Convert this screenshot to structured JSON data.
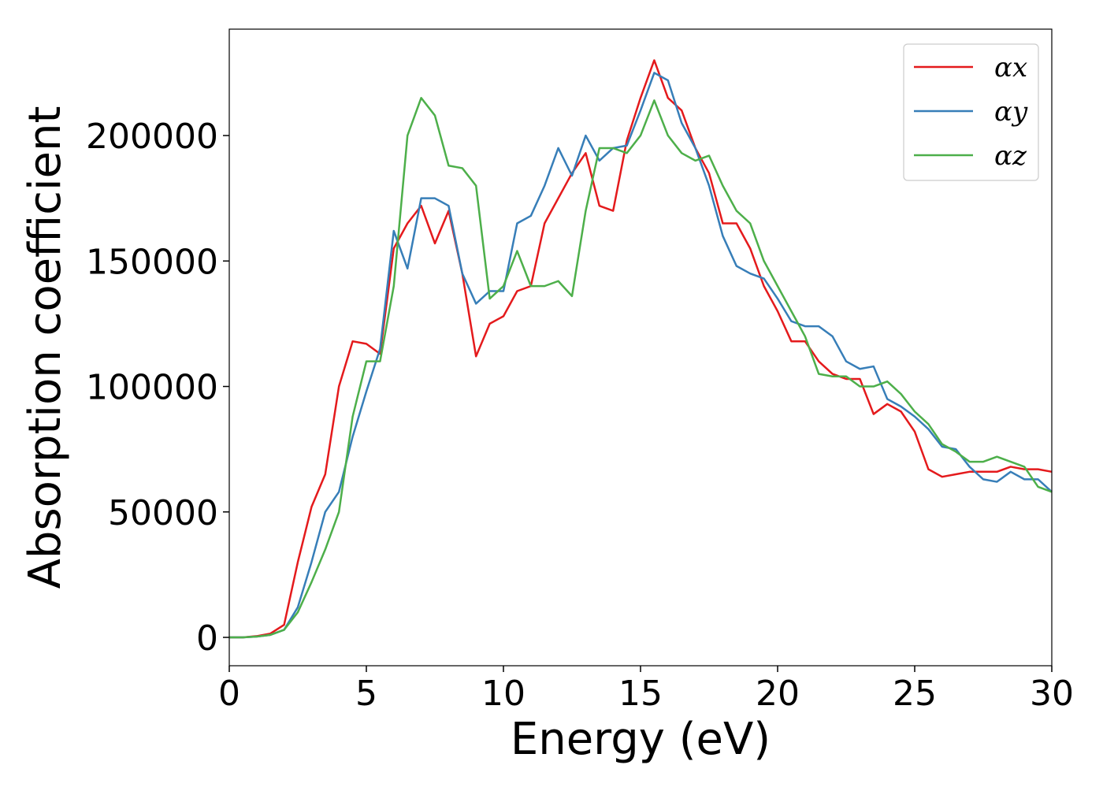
{
  "chart_data": {
    "type": "line",
    "xlabel": "Energy (eV)",
    "ylabel": "Absorption coefficient",
    "x": [
      0,
      0.5,
      1,
      1.5,
      2,
      2.5,
      3,
      3.5,
      4,
      4.5,
      5,
      5.5,
      6,
      6.5,
      7,
      7.5,
      8,
      8.5,
      9,
      9.5,
      10,
      10.5,
      11,
      11.5,
      12,
      12.5,
      13,
      13.5,
      14,
      14.5,
      15,
      15.5,
      16,
      16.5,
      17,
      17.5,
      18,
      18.5,
      19,
      19.5,
      20,
      20.5,
      21,
      21.5,
      22,
      22.5,
      23,
      23.5,
      24,
      24.5,
      25,
      25.5,
      26,
      26.5,
      27,
      27.5,
      28,
      28.5,
      29,
      29.5,
      30
    ],
    "series": [
      {
        "name": "αx",
        "color": "#e41a1c",
        "values": [
          0,
          0,
          500,
          1500,
          5000,
          30000,
          52000,
          65000,
          100000,
          118000,
          117000,
          113000,
          155000,
          165000,
          172000,
          157000,
          170000,
          145000,
          112000,
          125000,
          128000,
          138000,
          140000,
          165000,
          175000,
          185000,
          193000,
          172000,
          170000,
          198000,
          215000,
          230000,
          215000,
          210000,
          195000,
          185000,
          165000,
          165000,
          155000,
          140000,
          130000,
          118000,
          118000,
          110000,
          105000,
          103000,
          103000,
          89000,
          93000,
          90000,
          82000,
          67000,
          64000,
          65000,
          66000,
          66000,
          66000,
          68000,
          67000,
          67000,
          66000
        ]
      },
      {
        "name": "αy",
        "color": "#377eb8",
        "values": [
          0,
          0,
          300,
          1000,
          3000,
          12000,
          30000,
          50000,
          58000,
          80000,
          98000,
          115000,
          162000,
          147000,
          175000,
          175000,
          172000,
          145000,
          133000,
          138000,
          138000,
          165000,
          168000,
          180000,
          195000,
          184000,
          200000,
          190000,
          195000,
          196000,
          210000,
          225000,
          222000,
          205000,
          195000,
          180000,
          160000,
          148000,
          145000,
          143000,
          135000,
          126000,
          124000,
          124000,
          120000,
          110000,
          107000,
          108000,
          95000,
          92000,
          88000,
          83000,
          76000,
          75000,
          68000,
          63000,
          62000,
          66000,
          63000,
          63000,
          58000
        ]
      },
      {
        "name": "αz",
        "color": "#4daf4a",
        "values": [
          0,
          0,
          300,
          1000,
          3000,
          10000,
          22000,
          35000,
          50000,
          88000,
          110000,
          110000,
          140000,
          200000,
          215000,
          208000,
          188000,
          187000,
          180000,
          135000,
          140000,
          154000,
          140000,
          140000,
          142000,
          136000,
          170000,
          195000,
          195000,
          193000,
          200000,
          214000,
          200000,
          193000,
          190000,
          192000,
          180000,
          170000,
          165000,
          150000,
          140000,
          130000,
          120000,
          105000,
          104000,
          104000,
          100000,
          100000,
          102000,
          97000,
          90000,
          85000,
          77000,
          74000,
          70000,
          70000,
          72000,
          70000,
          68000,
          60000,
          58000
        ]
      }
    ],
    "xlim": [
      0,
      30
    ],
    "xticks": [
      0,
      5,
      10,
      15,
      20,
      25,
      30
    ],
    "ylim": [
      -11300,
      242400
    ],
    "yticks": [
      0,
      50000,
      100000,
      150000,
      200000
    ],
    "legend": "upper right",
    "grid": false
  }
}
